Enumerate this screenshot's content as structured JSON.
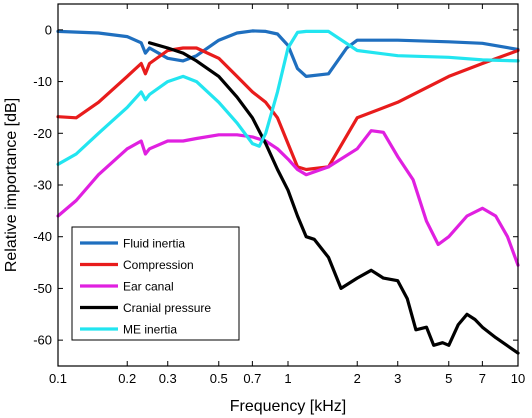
{
  "chart_data": {
    "type": "line",
    "xlabel": "Frequency [kHz]",
    "ylabel": "Relative importance [dB]",
    "xscale": "log",
    "xlim": [
      0.1,
      10
    ],
    "ylim": [
      -65,
      5
    ],
    "grid": false,
    "legend_position": "bottom-left",
    "xticks": [
      0.1,
      0.2,
      0.3,
      0.5,
      0.7,
      1,
      2,
      3,
      5,
      7,
      10
    ],
    "xtick_labels": [
      "0.1",
      "0.2",
      "0.3",
      "0.5",
      "0.7",
      "1",
      "2",
      "3",
      "5",
      "7",
      "10"
    ],
    "yticks": [
      0,
      -10,
      -20,
      -30,
      -40,
      -50,
      -60
    ],
    "ytick_labels": [
      "0",
      "-10",
      "-20",
      "-30",
      "-40",
      "-50",
      "-60"
    ],
    "series": [
      {
        "name": "Fluid inertia",
        "color": "#1f6fbf",
        "x": [
          0.1,
          0.15,
          0.2,
          0.23,
          0.24,
          0.25,
          0.3,
          0.35,
          0.4,
          0.5,
          0.6,
          0.7,
          0.8,
          0.9,
          1.0,
          1.1,
          1.2,
          1.5,
          1.8,
          2.0,
          3.0,
          5.0,
          7.0,
          10.0
        ],
        "y": [
          -0.3,
          -0.6,
          -1.3,
          -2.5,
          -4.5,
          -3.5,
          -5.5,
          -6.0,
          -5.0,
          -2.0,
          -0.6,
          -0.2,
          -0.3,
          -0.8,
          -3.0,
          -7.5,
          -9.0,
          -8.5,
          -3.5,
          -2.0,
          -2.0,
          -2.3,
          -2.6,
          -3.8
        ]
      },
      {
        "name": "Compression",
        "color": "#e81c1c",
        "x": [
          0.1,
          0.12,
          0.15,
          0.2,
          0.23,
          0.24,
          0.25,
          0.3,
          0.35,
          0.4,
          0.5,
          0.6,
          0.7,
          0.8,
          0.9,
          1.0,
          1.1,
          1.2,
          1.5,
          2.0,
          3.0,
          5.0,
          7.0,
          10.0
        ],
        "y": [
          -16.8,
          -17.0,
          -14.0,
          -9.0,
          -6.5,
          -8.5,
          -6.5,
          -4.0,
          -3.5,
          -3.5,
          -5.5,
          -9.0,
          -12.0,
          -14.0,
          -17.0,
          -22.0,
          -26.5,
          -27.0,
          -26.5,
          -17.0,
          -14.0,
          -9.0,
          -6.5,
          -4.0
        ]
      },
      {
        "name": "Ear canal",
        "color": "#e020e0",
        "x": [
          0.1,
          0.12,
          0.15,
          0.2,
          0.23,
          0.24,
          0.25,
          0.3,
          0.35,
          0.4,
          0.5,
          0.6,
          0.7,
          0.8,
          0.9,
          1.0,
          1.1,
          1.2,
          1.5,
          2.0,
          2.3,
          2.6,
          3.0,
          3.5,
          4.0,
          4.5,
          5.0,
          6.0,
          7.0,
          8.0,
          9.0,
          10.0
        ],
        "y": [
          -36.0,
          -33.0,
          -28.0,
          -23.0,
          -21.5,
          -24.0,
          -23.0,
          -21.5,
          -21.5,
          -21.0,
          -20.3,
          -20.3,
          -20.7,
          -21.5,
          -23.0,
          -25.0,
          -27.0,
          -28.0,
          -26.5,
          -23.0,
          -19.5,
          -19.8,
          -24.5,
          -29.0,
          -37.0,
          -41.5,
          -40.0,
          -36.0,
          -34.5,
          -36.0,
          -40.0,
          -45.5
        ]
      },
      {
        "name": "Cranial pressure",
        "color": "#000000",
        "x": [
          0.25,
          0.3,
          0.35,
          0.4,
          0.5,
          0.6,
          0.7,
          0.8,
          0.9,
          1.0,
          1.1,
          1.2,
          1.3,
          1.5,
          1.7,
          2.0,
          2.3,
          2.6,
          3.0,
          3.3,
          3.6,
          4.0,
          4.3,
          4.7,
          5.0,
          5.5,
          6.0,
          6.5,
          7.0,
          8.0,
          10.0
        ],
        "y": [
          -2.5,
          -3.5,
          -4.5,
          -6.0,
          -9.0,
          -13.0,
          -17.0,
          -22.0,
          -27.0,
          -31.0,
          -36.0,
          -40.0,
          -40.5,
          -44.0,
          -50.0,
          -48.0,
          -46.5,
          -48.0,
          -48.5,
          -52.0,
          -58.0,
          -57.5,
          -61.0,
          -60.5,
          -61.0,
          -57.0,
          -55.0,
          -56.0,
          -57.5,
          -59.5,
          -62.5
        ]
      },
      {
        "name": "ME inertia",
        "color": "#22e5f0",
        "x": [
          0.1,
          0.12,
          0.15,
          0.2,
          0.23,
          0.24,
          0.25,
          0.3,
          0.35,
          0.4,
          0.5,
          0.6,
          0.7,
          0.75,
          0.8,
          0.9,
          1.0,
          1.1,
          1.2,
          1.5,
          2.0,
          3.0,
          5.0,
          7.0,
          10.0
        ],
        "y": [
          -26.0,
          -24.0,
          -20.0,
          -15.0,
          -12.0,
          -13.5,
          -12.5,
          -10.0,
          -9.0,
          -10.0,
          -14.0,
          -18.0,
          -22.0,
          -22.5,
          -20.0,
          -12.0,
          -3.5,
          -0.5,
          -0.3,
          -0.3,
          -4.0,
          -5.0,
          -5.3,
          -5.8,
          -6.0
        ]
      }
    ]
  }
}
